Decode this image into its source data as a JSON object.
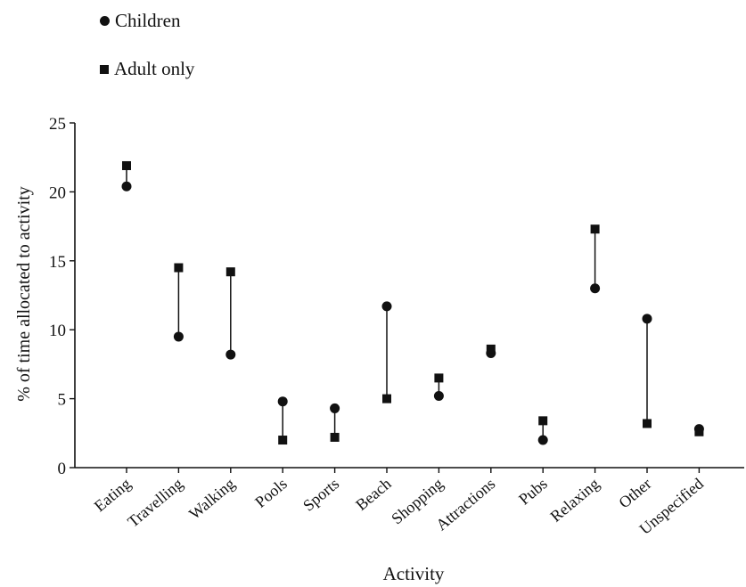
{
  "chart_data": {
    "type": "scatter",
    "title": "",
    "xlabel": "Activity",
    "ylabel": "% of time allocated to activity",
    "ylim": [
      0,
      25
    ],
    "yticks": [
      0,
      5,
      10,
      15,
      20,
      25
    ],
    "categories": [
      "Eating",
      "Travelling",
      "Walking",
      "Pools",
      "Sports",
      "Beach",
      "Shopping",
      "Attractions",
      "Pubs",
      "Relaxing",
      "Other",
      "Unspecified"
    ],
    "series": [
      {
        "name": "Children",
        "marker": "circle",
        "values": [
          20.4,
          9.5,
          8.2,
          4.8,
          4.3,
          11.7,
          5.2,
          8.3,
          2.0,
          13.0,
          10.8,
          2.8
        ]
      },
      {
        "name": "Adult only",
        "marker": "square",
        "values": [
          21.9,
          14.5,
          14.2,
          2.0,
          2.2,
          5.0,
          6.5,
          8.6,
          3.4,
          17.3,
          3.2,
          2.6
        ]
      }
    ],
    "connect_pairs": true,
    "grid": false,
    "legend_position": "top-left",
    "colors": {
      "marker": "#111111",
      "axis": "#111111"
    }
  }
}
